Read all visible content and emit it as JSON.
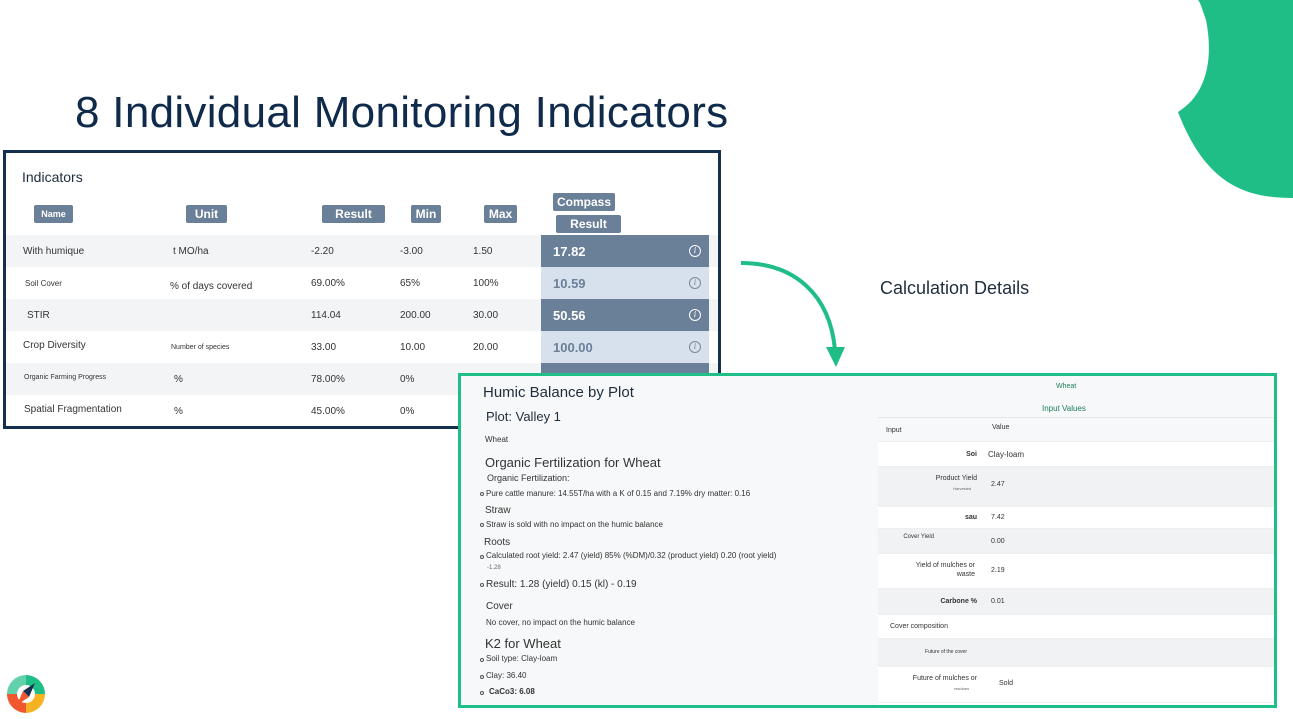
{
  "slide": {
    "title": "8 Individual Monitoring Indicators",
    "calc_label": "Calculation Details"
  },
  "indicators": {
    "title": "Indicators",
    "headers": {
      "name": "Name",
      "unit": "Unit",
      "result": "Result",
      "min": "Min",
      "max": "Max",
      "compass": "Compass",
      "compass_result": "Result"
    },
    "rows": [
      {
        "name": "With humique",
        "unit": "t MO/ha",
        "result": "-2.20",
        "min": "-3.00",
        "max": "1.50",
        "compass": "17.82"
      },
      {
        "name": "Soil Cover",
        "unit": "% of days covered",
        "result": "69.00%",
        "min": "65%",
        "max": "100%",
        "compass": "10.59"
      },
      {
        "name": "STIR",
        "unit": "",
        "result": "114.04",
        "min": "200.00",
        "max": "30.00",
        "compass": "50.56"
      },
      {
        "name": "Crop Diversity",
        "unit": "Number of species",
        "result": "33.00",
        "min": "10.00",
        "max": "20.00",
        "compass": "100.00"
      },
      {
        "name": "Organic Farming Progress",
        "unit": "%",
        "result": "78.00%",
        "min": "0%",
        "max": "",
        "compass": ""
      },
      {
        "name": "Spatial Fragmentation",
        "unit": "%",
        "result": "45.00%",
        "min": "0%",
        "max": "",
        "compass": ""
      }
    ]
  },
  "humic": {
    "title": "Humic Balance by Plot",
    "plot": "Plot: Valley 1",
    "crop": "Wheat",
    "organic_fert_title": "Organic Fertilization for Wheat",
    "organic_fert_label": "Organic Fertilization:",
    "organic_fert_detail": "Pure cattle manure: 14.55T/ha with a K of 0.15 and 7.19% dry matter: 0.16",
    "straw_title": "Straw",
    "straw_detail": "Straw is sold with no impact on the humic balance",
    "roots_title": "Roots",
    "roots_detail": "Calculated root yield: 2.47 (yield) 85% (%DM)/0.32 (product yield) 0.20 (root yield)",
    "roots_sub": "-1.28",
    "result_line": "Result: 1.28 (yield) 0.15 (kl) - 0.19",
    "cover_title": "Cover",
    "cover_detail": "No cover, no impact on the humic balance",
    "k2_title": "K2 for Wheat",
    "soil_type": "Soil type: Clay-loam",
    "clay": "Clay: 36.40",
    "caco3": "CaCo3: 6.08"
  },
  "input_values": {
    "crop": "Wheat",
    "title": "Input Values",
    "col_input": "Input",
    "col_value": "Value",
    "rows": [
      {
        "label": "Soi",
        "value": "Clay-loam"
      },
      {
        "label": "Product Yield",
        "sub": "Harvested",
        "value": "2.47"
      },
      {
        "label": "sau",
        "value": "7.42"
      },
      {
        "label": "Cover Yield",
        "value": "0.00"
      },
      {
        "label": "Yield of mulches or waste",
        "value": "2.19"
      },
      {
        "label": "Carbone %",
        "value": "0.01"
      },
      {
        "label": "Cover composition",
        "value": ""
      },
      {
        "label": "Future of the cover",
        "value": ""
      },
      {
        "label": "Future of mulches or",
        "sub": "residues",
        "value": "Sold"
      }
    ]
  },
  "colors": {
    "accent_green": "#1fbe86",
    "navy": "#15304f",
    "slate": "#6a7f98",
    "light_blue": "#d7e1ee"
  },
  "icons": [
    "info-icon",
    "curved-arrow-icon",
    "app-logo-icon",
    "decorative-blob"
  ]
}
